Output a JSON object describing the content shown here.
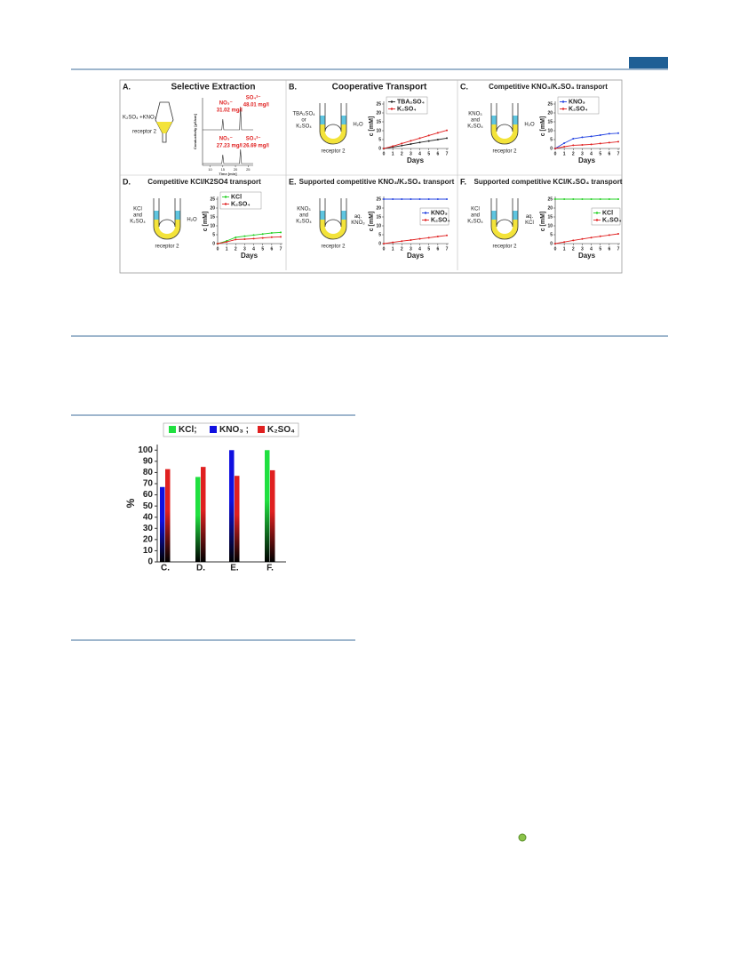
{
  "figure1": {
    "panels": [
      {
        "label": "A.",
        "title": "Selective Extraction",
        "left_text": [
          "K₂SO₄ +KNO₃"
        ],
        "receptor": "receptor 2",
        "chromatogram": {
          "ylabel": "Conductivity [µS/cm]",
          "xlabel": "Time [min]",
          "xlim": [
            7,
            27
          ],
          "xticks": [
            10,
            15,
            20,
            25
          ],
          "peaks": [
            [
              "NO₃⁻",
              "31.02 mg/l"
            ],
            [
              "SO₄²⁻",
              "48.01 mg/l"
            ],
            [
              "NO₃⁻",
              "27.23 mg/l"
            ],
            [
              "SO₄²⁻",
              "26.69 mg/l"
            ]
          ]
        }
      },
      {
        "label": "B.",
        "title": "Cooperative Transport",
        "left_text": [
          "TBA₂SO₄",
          "or",
          "K₂SO₄"
        ],
        "right_text": [
          "H₂O"
        ],
        "receptor": "receptor 2",
        "chart": {
          "type": "line",
          "legend": "upper left",
          "ylabel": "c [mM]",
          "xlabel": "Days",
          "x": [
            0,
            1,
            2,
            3,
            4,
            5,
            6,
            7
          ],
          "xlim": [
            0,
            7
          ],
          "xticks": [
            0,
            1,
            2,
            3,
            4,
            5,
            6,
            7
          ],
          "ylim": [
            0,
            25
          ],
          "yticks": [
            0,
            5,
            10,
            15,
            20,
            25
          ],
          "series": [
            {
              "name": "TBA₂SO₄",
              "color": "#222222",
              "values": [
                0,
                0.8,
                1.6,
                2.5,
                3.4,
                4.2,
                5,
                5.8
              ]
            },
            {
              "name": "K₂SO₄",
              "color": "#e02020",
              "values": [
                0,
                1.3,
                2.8,
                4.3,
                5.8,
                7.3,
                8.8,
                10.2
              ]
            }
          ]
        }
      },
      {
        "label": "C.",
        "title": "Competitive KNO₃/K₂SO₄ transport",
        "left_text": [
          "KNO₃",
          "and",
          "K₂SO₄"
        ],
        "right_text": [
          "H₂O"
        ],
        "receptor": "receptor 2",
        "chart": {
          "type": "line",
          "legend": "upper left",
          "ylabel": "c [mM]",
          "xlabel": "Days",
          "x": [
            0,
            1,
            2,
            3,
            4,
            5,
            6,
            7
          ],
          "xlim": [
            0,
            7
          ],
          "xticks": [
            0,
            1,
            2,
            3,
            4,
            5,
            6,
            7
          ],
          "ylim": [
            0,
            25
          ],
          "yticks": [
            0,
            5,
            10,
            15,
            20,
            25
          ],
          "series": [
            {
              "name": "KNO₃",
              "color": "#1f3fe0",
              "values": [
                0,
                3,
                5.5,
                6.3,
                6.8,
                7.5,
                8.3,
                8.6
              ]
            },
            {
              "name": "K₂SO₄",
              "color": "#e02020",
              "values": [
                0,
                1,
                1.8,
                2,
                2.3,
                2.8,
                3.3,
                3.8
              ]
            }
          ]
        }
      },
      {
        "label": "D.",
        "title": "Competitive KCl/K2SO4 transport",
        "left_text": [
          "KCl",
          "and",
          "K₂SO₄"
        ],
        "right_text": [
          "H₂O"
        ],
        "receptor": "receptor 2",
        "chart": {
          "type": "line",
          "legend": "upper left",
          "ylabel": "c [mM]",
          "xlabel": "Days",
          "x": [
            0,
            1,
            2,
            3,
            4,
            5,
            6,
            7
          ],
          "xlim": [
            0,
            7
          ],
          "xticks": [
            0,
            1,
            2,
            3,
            4,
            5,
            6,
            7
          ],
          "ylim": [
            0,
            25
          ],
          "yticks": [
            0,
            5,
            10,
            15,
            20,
            25
          ],
          "series": [
            {
              "name": "KCl",
              "color": "#20d020",
              "values": [
                0,
                1.5,
                3.5,
                4.2,
                4.8,
                5.4,
                6,
                6.3
              ]
            },
            {
              "name": "K₂SO₄",
              "color": "#e02020",
              "values": [
                0,
                1,
                2.3,
                2.5,
                2.8,
                3.2,
                3.6,
                3.8
              ]
            }
          ]
        }
      },
      {
        "label": "E.",
        "title": "Supported competitive KNO₃/K₂SO₄ transport",
        "left_text": [
          "KNO₃",
          "and",
          "K₂SO₄"
        ],
        "right_text": [
          "aq.",
          "KNO₃"
        ],
        "receptor": "receptor 2",
        "chart": {
          "type": "line",
          "legend": "center right",
          "ylabel": "c [mM]",
          "xlabel": "Days",
          "x": [
            0,
            1,
            2,
            3,
            4,
            5,
            6,
            7
          ],
          "xlim": [
            0,
            7
          ],
          "xticks": [
            0,
            1,
            2,
            3,
            4,
            5,
            6,
            7
          ],
          "ylim": [
            0,
            25
          ],
          "yticks": [
            0,
            5,
            10,
            15,
            20,
            25
          ],
          "series": [
            {
              "name": "KNO₃",
              "color": "#1f3fe0",
              "values": [
                25,
                25,
                25,
                25,
                25,
                25,
                25,
                25
              ]
            },
            {
              "name": "K₂SO₄",
              "color": "#e02020",
              "values": [
                0,
                0.7,
                1.4,
                2,
                2.7,
                3.3,
                4,
                4.6
              ]
            }
          ]
        }
      },
      {
        "label": "F.",
        "title": "Supported competitive KCl/K₂SO₄ transport",
        "left_text": [
          "KCl",
          "and",
          "K₂SO₄"
        ],
        "right_text": [
          "aq.",
          "KCl"
        ],
        "receptor": "receptor 2",
        "chart": {
          "type": "line",
          "legend": "center right",
          "ylabel": "c [mM]",
          "xlabel": "Days",
          "x": [
            0,
            1,
            2,
            3,
            4,
            5,
            6,
            7
          ],
          "xlim": [
            0,
            7
          ],
          "xticks": [
            0,
            1,
            2,
            3,
            4,
            5,
            6,
            7
          ],
          "ylim": [
            0,
            25
          ],
          "yticks": [
            0,
            5,
            10,
            15,
            20,
            25
          ],
          "series": [
            {
              "name": "KCl",
              "color": "#20d020",
              "values": [
                25,
                25,
                25,
                25,
                25,
                25,
                25,
                25
              ]
            },
            {
              "name": "K₂SO₄",
              "color": "#e02020",
              "values": [
                0,
                0.9,
                1.8,
                2.6,
                3.4,
                4.1,
                4.8,
                5.5
              ]
            }
          ]
        }
      }
    ]
  },
  "figure2": {
    "chart_data": {
      "type": "bar",
      "ylabel": "%",
      "categories": [
        "C.",
        "D.",
        "E.",
        "F."
      ],
      "ylim": [
        0,
        105
      ],
      "yticks": [
        0,
        10,
        20,
        30,
        40,
        50,
        60,
        70,
        80,
        90,
        100
      ],
      "series": [
        {
          "name": "KCl;",
          "color": "#20e040",
          "values": [
            null,
            76,
            null,
            100
          ]
        },
        {
          "name": "KNO₃ ;",
          "color": "#1010e0",
          "values": [
            67,
            null,
            100,
            null
          ]
        },
        {
          "name": "K₂SO₄",
          "color": "#e02020",
          "values": [
            83,
            85,
            77,
            82
          ]
        }
      ]
    }
  }
}
